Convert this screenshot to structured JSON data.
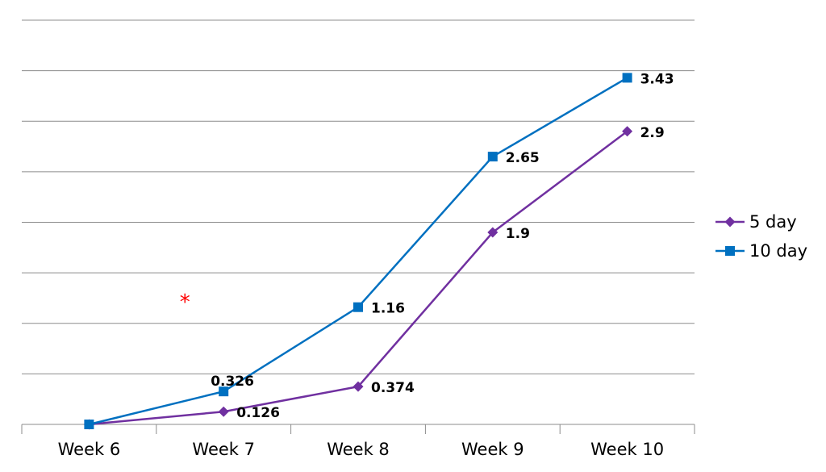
{
  "chart_data": {
    "type": "line",
    "categories": [
      "Week 6",
      "Week 7",
      "Week 8",
      "Week 9",
      "Week 10"
    ],
    "ylim": [
      0,
      4
    ],
    "grid": true,
    "legend_position": "right",
    "series": [
      {
        "name": "5 day",
        "values": [
          0,
          0.126,
          0.374,
          1.9,
          2.9
        ],
        "labels": [
          "",
          "0.126",
          "0.374",
          "1.9",
          "2.9"
        ],
        "color": "#7030a0",
        "marker": "diamond"
      },
      {
        "name": "10 day",
        "values": [
          0,
          0.326,
          1.16,
          2.65,
          3.43
        ],
        "labels": [
          "",
          "0.326",
          "1.16",
          "2.65",
          "3.43"
        ],
        "color": "#0070c0",
        "marker": "square"
      }
    ],
    "annotations": [
      {
        "text": "*",
        "x": "Week 7",
        "y": 1.3,
        "color": "#ff0000"
      }
    ]
  }
}
